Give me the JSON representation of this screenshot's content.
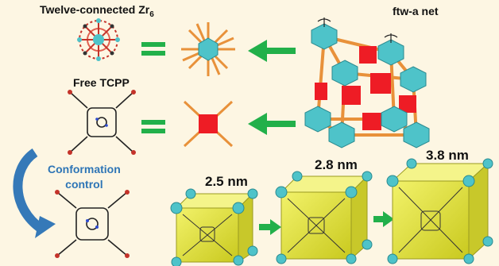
{
  "labels": {
    "zr_cluster": "Twelve-connected Zr",
    "zr_subscript": "6",
    "net": "ftw-a net",
    "free_tcpp": "Free TCPP",
    "conformation_line1": "Conformation",
    "conformation_line2": "control",
    "size_small": "2.5 nm",
    "size_medium": "2.8 nm",
    "size_large": "3.8 nm"
  },
  "colors": {
    "background": "#fdf6e3",
    "green_arrow": "#22b04a",
    "orange_rod": "#e8913a",
    "red_square": "#ee1c25",
    "cyan_polyhedron": "#4ec3c9",
    "yellow_cube": "#e6e63c",
    "blue_arrow": "#3579b8",
    "blue_text": "#2e75b6"
  }
}
